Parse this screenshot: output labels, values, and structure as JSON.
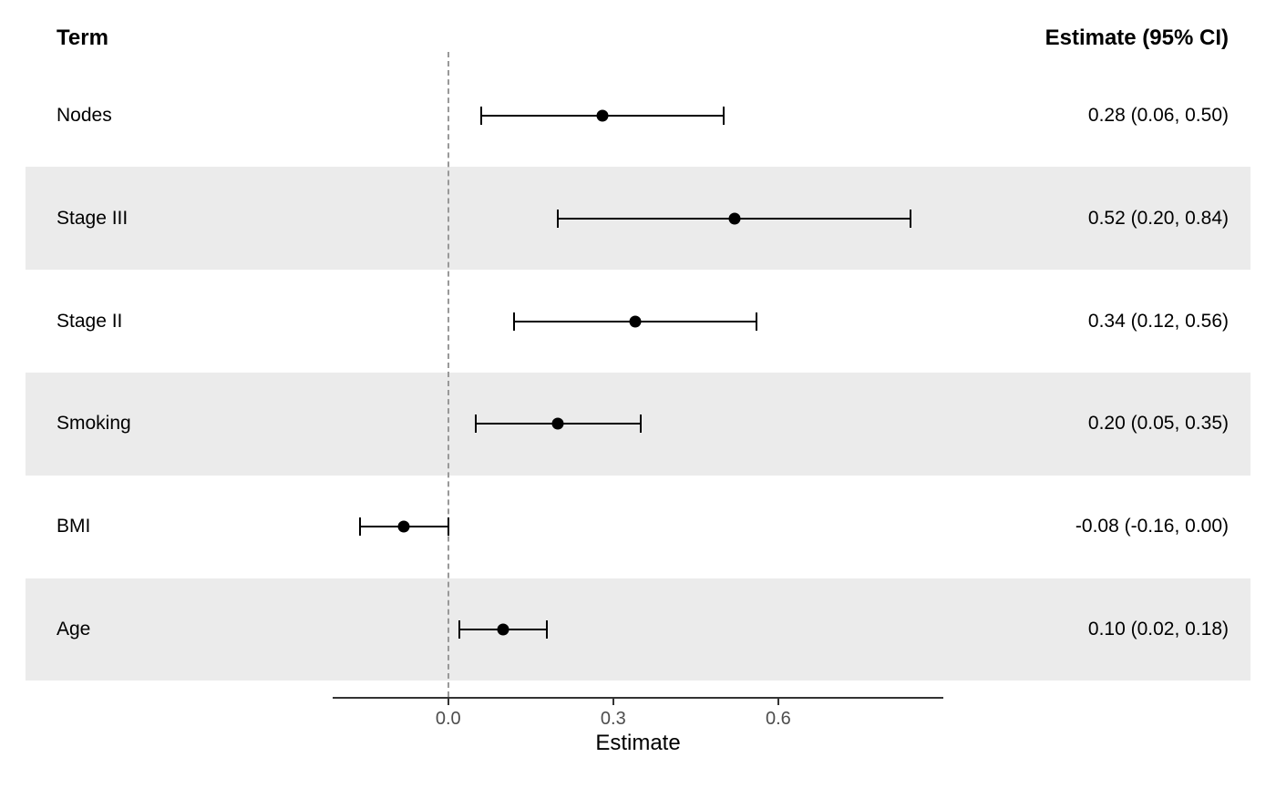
{
  "chart_data": {
    "type": "forest",
    "xlabel": "Estimate",
    "columns": {
      "term": "Term",
      "estimate": "Estimate (95% CI)"
    },
    "rows": [
      {
        "term": "Nodes",
        "estimate": 0.28,
        "lower": 0.06,
        "upper": 0.5,
        "label": "0.28 (0.06, 0.50)"
      },
      {
        "term": "Stage III",
        "estimate": 0.52,
        "lower": 0.2,
        "upper": 0.84,
        "label": "0.52 (0.20, 0.84)"
      },
      {
        "term": "Stage II",
        "estimate": 0.34,
        "lower": 0.12,
        "upper": 0.56,
        "label": "0.34 (0.12, 0.56)"
      },
      {
        "term": "Smoking",
        "estimate": 0.2,
        "lower": 0.05,
        "upper": 0.35,
        "label": "0.20 (0.05, 0.35)"
      },
      {
        "term": "BMI",
        "estimate": -0.08,
        "lower": -0.16,
        "upper": 0.0,
        "label": "-0.08 (-0.16, 0.00)"
      },
      {
        "term": "Age",
        "estimate": 0.1,
        "lower": 0.02,
        "upper": 0.18,
        "label": "0.10 (0.02, 0.18)"
      }
    ],
    "x_ticks": [
      {
        "value": 0.0,
        "label": "0.0"
      },
      {
        "value": 0.3,
        "label": "0.3"
      },
      {
        "value": 0.6,
        "label": "0.6"
      }
    ],
    "xlim": [
      -0.21,
      0.9
    ],
    "reference_line": 0,
    "grid": false,
    "legend": "none",
    "striped_rows": "even-from-second",
    "colors": {
      "point": "#000000",
      "ci": "#000000",
      "band": "#ebebeb",
      "reference_line": "#999999",
      "axis": "#333333",
      "tick_label": "#4d4d4d",
      "text": "#000000",
      "background": "#ffffff"
    }
  }
}
